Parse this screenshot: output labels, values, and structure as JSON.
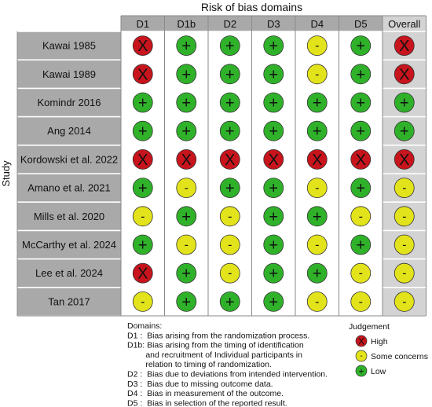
{
  "chart_data": {
    "type": "table",
    "title": "Risk of bias domains",
    "ylabel": "Study",
    "columns": [
      "D1",
      "D1b",
      "D2",
      "D3",
      "D4",
      "D5",
      "Overall"
    ],
    "rows": [
      {
        "study": "Kawai 1985",
        "judgements": [
          "High",
          "Low",
          "Low",
          "Low",
          "Some concerns",
          "Low",
          "High"
        ]
      },
      {
        "study": "Kawai 1989",
        "judgements": [
          "High",
          "Low",
          "Low",
          "Low",
          "Some concerns",
          "Low",
          "High"
        ]
      },
      {
        "study": "Komindr 2016",
        "judgements": [
          "Low",
          "Low",
          "Low",
          "Low",
          "Low",
          "Low",
          "Low"
        ]
      },
      {
        "study": "Ang 2014",
        "judgements": [
          "Low",
          "Low",
          "Low",
          "Low",
          "Low",
          "Low",
          "Low"
        ]
      },
      {
        "study": "Kordowski et al. 2022",
        "judgements": [
          "High",
          "High",
          "High",
          "High",
          "High",
          "High",
          "High"
        ]
      },
      {
        "study": "Amano et al. 2021",
        "judgements": [
          "Low",
          "Some concerns",
          "Low",
          "Low",
          "Some concerns",
          "Low",
          "Some concerns"
        ]
      },
      {
        "study": "Mills et al. 2020",
        "judgements": [
          "Some concerns",
          "Low",
          "Some concerns",
          "Low",
          "Low",
          "Some concerns",
          "Some concerns"
        ]
      },
      {
        "study": "McCarthy et al. 2024",
        "judgements": [
          "Low",
          "Some concerns",
          "Some concerns",
          "Low",
          "Some concerns",
          "Low",
          "Some concerns"
        ]
      },
      {
        "study": "Lee et al. 2024",
        "judgements": [
          "High",
          "Low",
          "Some concerns",
          "Low",
          "Low",
          "Some concerns",
          "Some concerns"
        ]
      },
      {
        "study": "Tan 2017",
        "judgements": [
          "Some concerns",
          "Low",
          "Low",
          "Low",
          "Some concerns",
          "Some concerns",
          "Some concerns"
        ]
      }
    ],
    "symbols": {
      "High": "X",
      "Some concerns": "-",
      "Low": "+"
    },
    "colors": {
      "High": "#c8141c",
      "Some concerns": "#e3e31c",
      "Low": "#2fb22a"
    },
    "domains_title": "Domains:",
    "domains": [
      "D1 :  Bias arising from the randomization process.",
      "D1b: Bias arising from the timing of identification",
      "        and recruitment of Individual participants in",
      "        relation to timing of randomization.",
      "D2 :  Bias due to deviations from intended intervention.",
      "D3 :  Bias due to missing outcome data.",
      "D4 :  Bias in measurement of the outcome.",
      "D5 :  Bias in selection of the reported result."
    ],
    "legend_title": "Judgement",
    "legend": [
      "High",
      "Some concerns",
      "Low"
    ]
  }
}
